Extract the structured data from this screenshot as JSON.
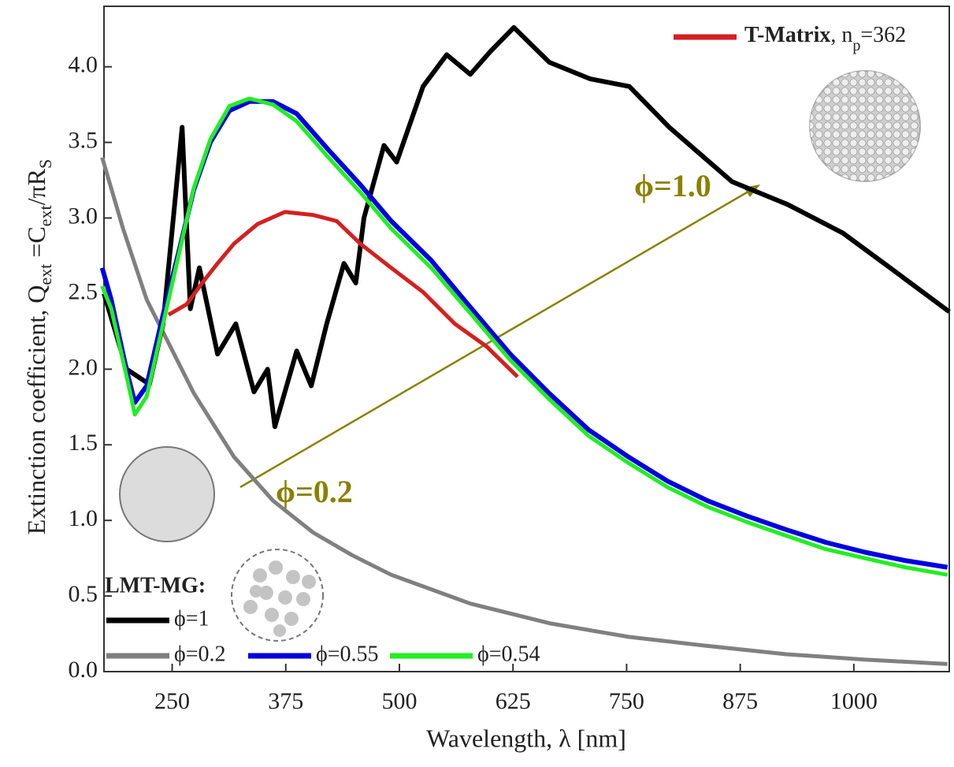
{
  "chart_data": {
    "type": "line",
    "xlabel": "Wavelength, λ [nm]",
    "ylabel": [
      "Extinction coefficient, Q",
      "ext",
      " =C",
      "ext",
      "/πR",
      "S"
    ],
    "xlim": [
      175,
      1105
    ],
    "ylim": [
      0,
      4.4
    ],
    "xticks": [
      250,
      375,
      500,
      625,
      750,
      875,
      1000
    ],
    "yticks": [
      {
        "value": 0,
        "label": "0.0"
      },
      0.5,
      {
        "value": 1,
        "label": "1.0"
      },
      1.5,
      {
        "value": 2,
        "label": "2.0"
      },
      2.5,
      {
        "value": 3,
        "label": "3.0"
      },
      3.5,
      {
        "value": 4,
        "label": "4.0"
      }
    ],
    "legend": "lower left",
    "legend_title": "LMT-MG:",
    "annotations": [
      "ϕ=0.2",
      "ϕ=1.0"
    ],
    "series": [
      {
        "name": "ϕ=0.2",
        "color": "#808080",
        "x": [
          173,
          196,
          222,
          248,
          274,
          318,
          361,
          405,
          448,
          491,
          578,
          665,
          752,
          839,
          925,
          1012,
          1103
        ],
        "values": [
          3.4,
          2.93,
          2.46,
          2.15,
          1.84,
          1.42,
          1.13,
          0.92,
          0.77,
          0.64,
          0.45,
          0.32,
          0.23,
          0.17,
          0.115,
          0.08,
          0.05
        ]
      },
      {
        "name": "ϕ=1",
        "color": "#000000",
        "x": [
          175,
          200,
          225,
          240,
          261,
          270,
          280,
          300,
          320,
          340,
          355,
          363,
          387,
          403,
          420,
          439,
          452,
          461,
          483,
          497,
          526,
          552,
          578,
          600,
          626,
          665,
          710,
          753,
          797,
          866,
          927,
          988,
          1040,
          1105
        ],
        "values": [
          2.5,
          2.0,
          1.9,
          2.3,
          3.6,
          2.4,
          2.67,
          2.1,
          2.3,
          1.85,
          2.0,
          1.62,
          2.12,
          1.89,
          2.3,
          2.7,
          2.57,
          3.0,
          3.48,
          3.37,
          3.87,
          4.08,
          3.95,
          4.1,
          4.26,
          4.03,
          3.92,
          3.87,
          3.6,
          3.24,
          3.09,
          2.9,
          2.67,
          2.38
        ]
      },
      {
        "name": "T-Matrix",
        "color": "#d42020",
        "x": [
          246,
          266,
          283,
          300,
          318,
          344,
          374,
          405,
          431,
          457,
          491,
          526,
          561,
          596,
          630
        ],
        "values": [
          2.36,
          2.43,
          2.57,
          2.7,
          2.83,
          2.96,
          3.04,
          3.02,
          2.98,
          2.83,
          2.67,
          2.51,
          2.3,
          2.15,
          1.95
        ]
      },
      {
        "name": "ϕ=0.55",
        "color": "#0000e0",
        "x": [
          173,
          183,
          200,
          209,
          222,
          240,
          257,
          274,
          292,
          313,
          335,
          361,
          387,
          422,
          457,
          491,
          535,
          578,
          622,
          665,
          708,
          752,
          795,
          839,
          882,
          925,
          969,
          1012,
          1056,
          1103
        ],
        "values": [
          2.67,
          2.46,
          1.99,
          1.78,
          1.89,
          2.36,
          2.77,
          3.19,
          3.5,
          3.71,
          3.77,
          3.77,
          3.69,
          3.45,
          3.22,
          2.98,
          2.72,
          2.41,
          2.1,
          1.84,
          1.6,
          1.42,
          1.26,
          1.13,
          1.03,
          0.94,
          0.855,
          0.79,
          0.735,
          0.69
        ]
      },
      {
        "name": "ϕ=0.54",
        "color": "#22ee22",
        "x": [
          173,
          183,
          200,
          209,
          222,
          240,
          257,
          274,
          292,
          313,
          335,
          361,
          387,
          422,
          457,
          491,
          535,
          578,
          622,
          665,
          708,
          752,
          795,
          839,
          882,
          925,
          969,
          1012,
          1056,
          1103
        ],
        "values": [
          2.55,
          2.4,
          1.95,
          1.7,
          1.82,
          2.3,
          2.75,
          3.2,
          3.52,
          3.74,
          3.79,
          3.75,
          3.64,
          3.4,
          3.17,
          2.93,
          2.67,
          2.37,
          2.06,
          1.8,
          1.56,
          1.38,
          1.22,
          1.09,
          0.99,
          0.9,
          0.81,
          0.75,
          0.69,
          0.64
        ]
      }
    ],
    "legend_suffix": [
      ", n",
      "p",
      "=362"
    ]
  }
}
